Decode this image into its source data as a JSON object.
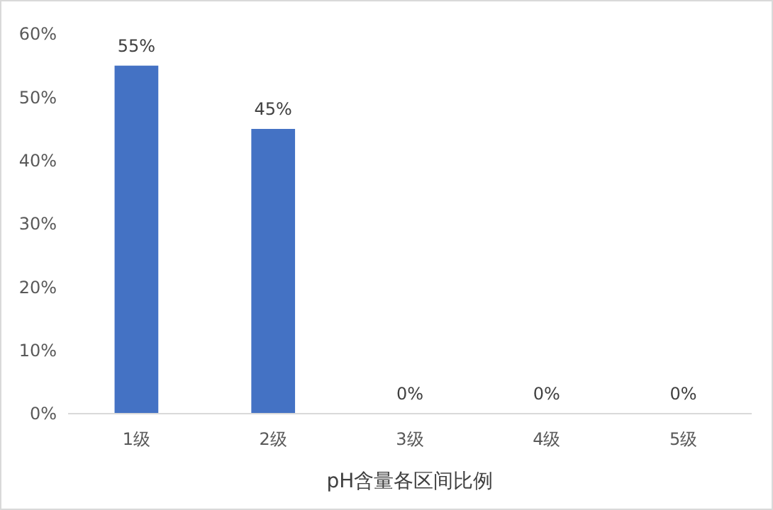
{
  "chart_data": {
    "type": "bar",
    "xlabel": "pH含量各区间比例",
    "categories": [
      "1级",
      "2级",
      "3级",
      "4级",
      "5级"
    ],
    "values": [
      55,
      45,
      0,
      0,
      0
    ],
    "value_labels": [
      "55%",
      "45%",
      "0%",
      "0%",
      "0%"
    ],
    "color": "#4472c4",
    "ylim": [
      0,
      60
    ],
    "yticks": [
      {
        "value": 0,
        "label": "0%"
      },
      {
        "value": 10,
        "label": "10%"
      },
      {
        "value": 20,
        "label": "20%"
      },
      {
        "value": 30,
        "label": "30%"
      },
      {
        "value": 40,
        "label": "40%"
      },
      {
        "value": 50,
        "label": "50%"
      },
      {
        "value": 60,
        "label": "60%"
      }
    ],
    "grid": false
  }
}
